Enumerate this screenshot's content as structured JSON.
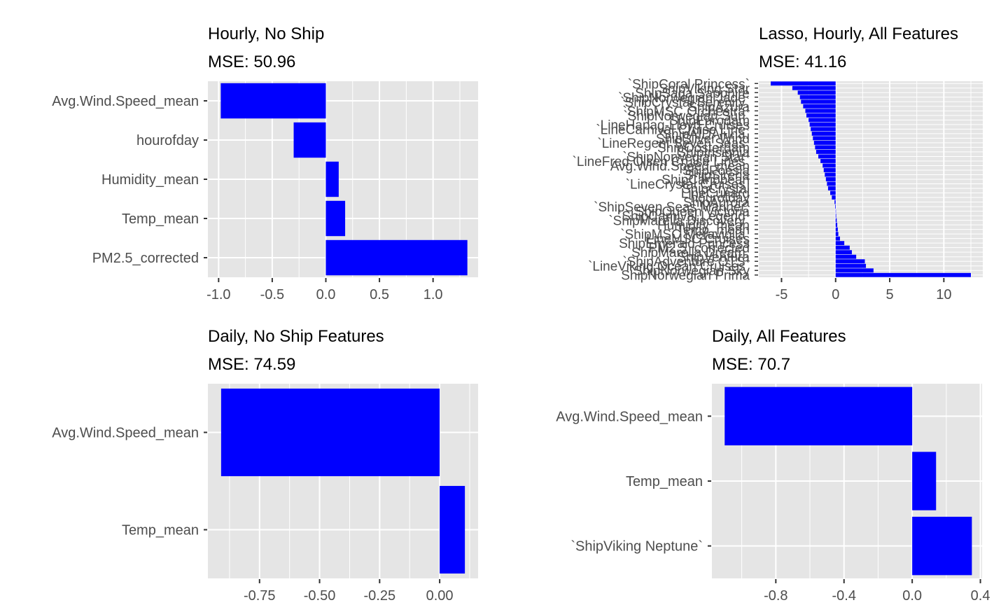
{
  "colors": {
    "bar": "#0000ff",
    "panel": "#e5e5e5",
    "grid": "#ffffff",
    "tick_text": "#4d4d4d",
    "title_text": "#000000"
  },
  "chart_data": [
    {
      "type": "bar",
      "orientation": "horizontal",
      "title": "Hourly, No Ship",
      "subtitle": "MSE: 50.96",
      "categories": [
        "Avg.Wind.Speed_mean",
        "hourofday",
        "Humidity_mean",
        "Temp_mean",
        "PM2.5_corrected"
      ],
      "values": [
        -0.98,
        -0.3,
        0.12,
        0.18,
        1.32
      ],
      "xlim": [
        -1.1,
        1.42
      ],
      "xticks": [
        -1.0,
        -0.5,
        0.0,
        0.5,
        1.0
      ],
      "xtick_labels": [
        "-1.0",
        "-0.5",
        "0.0",
        "0.5",
        "1.0"
      ],
      "grid": true
    },
    {
      "type": "bar",
      "orientation": "horizontal",
      "title": "Lasso, Hourly, All Features",
      "subtitle": "MSE: 41.16",
      "categories": [
        "`ShipCoral Princess`",
        "ShipViking Star",
        "ShipSaga Sapphire",
        "`ShipNorwegian Jade`",
        "`ShipCrystal Serenity`",
        "ShipAzura",
        "`ShipMSC Orchestra`",
        "`ShipNorwegian Sun`",
        "ShipEurodam",
        "LineHapag-Lloyd Cruises",
        "`LineCarnival Cruise Line`",
        "`ShipAIDAluna`",
        "ShipSilver Wind",
        "`LineRegent Seven Seas`",
        "ShipOosterdam",
        "ShipInsignia",
        "`ShipNorwegian Star`",
        "`LineFred Olsen Cruise Lines`",
        "Avg.Wind.Speed_mean",
        "ShipPoesia",
        "ShipSirena",
        "ShipCaribbean",
        "`LineCrystal Cruises`",
        "ShipCrystal",
        "LineCunard",
        "hourofday",
        "ShipAurora",
        "`ShipSeven Seas Mariner`",
        "ShipQueen Victoria",
        "`ShipCarnival Legend`",
        "`ShipMarella Discovery`",
        "Humidity_mean",
        "Temp_mean",
        "`ShipMSC Meraviglia`",
        "LineMSC Cruises",
        "ShipEmerald Princess",
        "PM2.5_corrected",
        "`ShipMarella Dream`",
        "ShipVentura",
        "`ShipAdventure OTS`",
        "`LineViking Ocean Cruises`",
        "ShipNorwegian Sky",
        "ShipNorwegian Prima"
      ],
      "values": [
        -6.0,
        -4.0,
        -3.5,
        -3.3,
        -3.2,
        -3.0,
        -2.8,
        -2.7,
        -2.5,
        -2.4,
        -2.3,
        -2.2,
        -2.1,
        -2.0,
        -1.9,
        -1.8,
        -1.6,
        -1.4,
        -1.2,
        -1.1,
        -1.0,
        -0.9,
        -0.8,
        -0.7,
        -0.5,
        -0.35,
        -0.1,
        -0.05,
        0.0,
        0.05,
        0.1,
        0.15,
        0.2,
        0.25,
        0.4,
        0.8,
        1.3,
        1.5,
        1.9,
        2.7,
        2.8,
        3.5,
        12.5
      ],
      "xlim": [
        -7.1,
        13.6
      ],
      "xticks": [
        -5,
        0,
        5,
        10
      ],
      "xtick_labels": [
        "-5",
        "0",
        "5",
        "10"
      ],
      "grid": true
    },
    {
      "type": "bar",
      "orientation": "horizontal",
      "title": "Daily, No Ship Features",
      "subtitle": "MSE: 74.59",
      "categories": [
        "Avg.Wind.Speed_mean",
        "Temp_mean"
      ],
      "values": [
        -0.91,
        0.105
      ],
      "xlim": [
        -0.965,
        0.16
      ],
      "xticks": [
        -0.75,
        -0.5,
        -0.25,
        0.0
      ],
      "xtick_labels": [
        "-0.75",
        "-0.50",
        "-0.25",
        "0.00"
      ],
      "grid": true
    },
    {
      "type": "bar",
      "orientation": "horizontal",
      "title": "Daily, All Features",
      "subtitle": "MSE: 70.7",
      "categories": [
        "Avg.Wind.Speed_mean",
        "Temp_mean",
        "`ShipViking Neptune`"
      ],
      "values": [
        -1.1,
        0.14,
        0.35
      ],
      "xlim": [
        -1.175,
        0.41
      ],
      "xticks": [
        -0.8,
        -0.4,
        0.0,
        0.4
      ],
      "xtick_labels": [
        "-0.8",
        "-0.4",
        "0.0",
        "0.4"
      ],
      "grid": true
    }
  ]
}
